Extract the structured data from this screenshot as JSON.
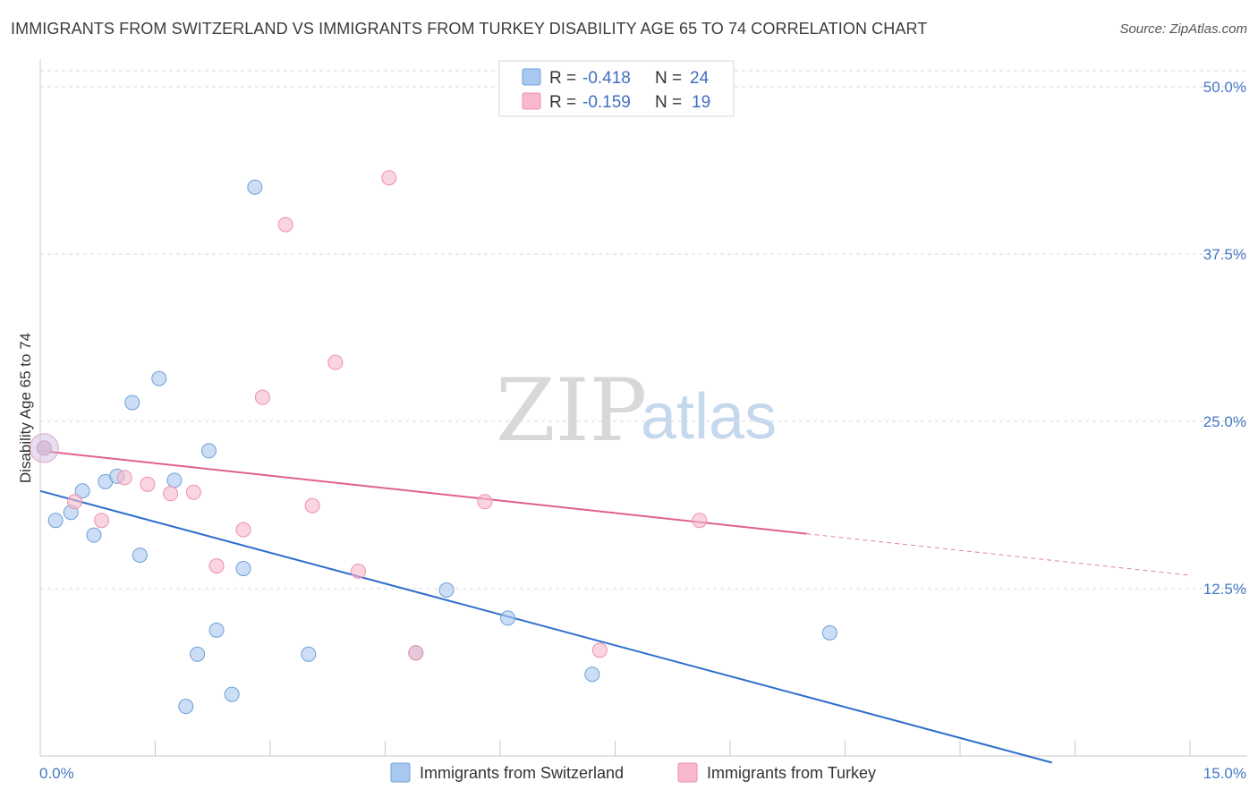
{
  "header": {
    "title": "IMMIGRANTS FROM SWITZERLAND VS IMMIGRANTS FROM TURKEY DISABILITY AGE 65 TO 74 CORRELATION CHART",
    "source": "Source: ZipAtlas.com"
  },
  "watermark": {
    "zip": "ZIP",
    "atlas": "atlas"
  },
  "legend": {
    "r_label": "R =",
    "n_label": "N =",
    "rows": [
      {
        "r": "-0.418",
        "n": "24",
        "color": "#a9c8f0"
      },
      {
        "r": "-0.159",
        "n": "19",
        "color": "#f7b9cb"
      }
    ]
  },
  "bottom_legend": [
    {
      "label": "Immigrants from Switzerland",
      "color": "#a9c8f0"
    },
    {
      "label": "Immigrants from Turkey",
      "color": "#f7b9cb"
    }
  ],
  "chart_data": {
    "type": "scatter",
    "ylabel": "Disability Age 65 to 74",
    "xlim": [
      0,
      15
    ],
    "ylim": [
      0,
      50
    ],
    "x_tick_labels": [
      "0.0%",
      "15.0%"
    ],
    "y_ticks": [
      12.5,
      25.0,
      37.5,
      50.0
    ],
    "y_tick_labels": [
      "12.5%",
      "25.0%",
      "37.5%",
      "50.0%"
    ],
    "grid": true,
    "series": [
      {
        "name": "Immigrants from Switzerland",
        "color": "#a9c8f0",
        "edge": "#6f9fd8",
        "line_color": "#2e6fcc",
        "trend": {
          "x": [
            0,
            13.2
          ],
          "y": [
            19.8,
            -0.5
          ],
          "dashed_to": null
        },
        "points": [
          [
            0.05,
            23.0
          ],
          [
            0.2,
            17.6
          ],
          [
            0.4,
            18.2
          ],
          [
            0.55,
            19.8
          ],
          [
            0.7,
            16.5
          ],
          [
            0.85,
            20.5
          ],
          [
            1.0,
            20.9
          ],
          [
            1.2,
            26.4
          ],
          [
            1.3,
            15.0
          ],
          [
            1.55,
            28.2
          ],
          [
            1.75,
            20.6
          ],
          [
            1.9,
            3.7
          ],
          [
            2.05,
            7.6
          ],
          [
            2.2,
            22.8
          ],
          [
            2.3,
            9.4
          ],
          [
            2.5,
            4.6
          ],
          [
            2.65,
            14.0
          ],
          [
            2.8,
            42.5
          ],
          [
            3.5,
            7.6
          ],
          [
            4.9,
            7.7
          ],
          [
            5.3,
            12.4
          ],
          [
            6.1,
            10.3
          ],
          [
            7.2,
            6.1
          ],
          [
            10.3,
            9.2
          ]
        ]
      },
      {
        "name": "Immigrants from Turkey",
        "color": "#f7b9cb",
        "edge": "#ee8fae",
        "line_color": "#e0608d",
        "trend": {
          "x": [
            0,
            10.0
          ],
          "y": [
            22.8,
            16.6
          ],
          "dashed_to": [
            15.0,
            13.5
          ]
        },
        "points": [
          [
            0.05,
            23.0
          ],
          [
            0.45,
            19.0
          ],
          [
            0.8,
            17.6
          ],
          [
            1.1,
            20.8
          ],
          [
            1.4,
            20.3
          ],
          [
            1.7,
            19.6
          ],
          [
            2.0,
            19.7
          ],
          [
            2.3,
            14.2
          ],
          [
            2.65,
            16.9
          ],
          [
            2.9,
            26.8
          ],
          [
            3.2,
            39.7
          ],
          [
            3.55,
            18.7
          ],
          [
            3.85,
            29.4
          ],
          [
            4.15,
            13.8
          ],
          [
            4.55,
            43.2
          ],
          [
            4.9,
            7.7
          ],
          [
            5.8,
            19.0
          ],
          [
            7.3,
            7.9
          ],
          [
            8.6,
            17.6
          ]
        ]
      }
    ]
  }
}
